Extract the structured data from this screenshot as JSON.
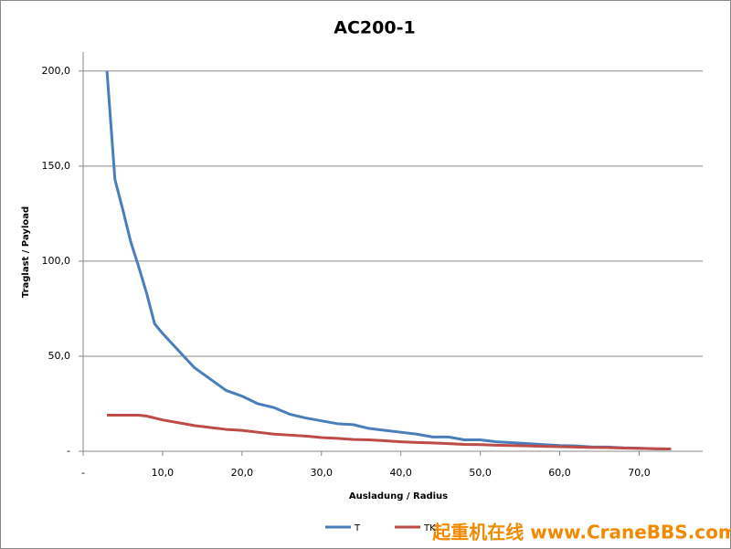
{
  "chart_data": {
    "type": "line",
    "title": "AC200-1",
    "x_label": "Ausladung / Radius",
    "y_label": "Traglast / Payload",
    "x": [
      3,
      4,
      5,
      6,
      7,
      8,
      9,
      10,
      12,
      14,
      16,
      18,
      20,
      22,
      24,
      26,
      28,
      30,
      32,
      34,
      36,
      38,
      40,
      42,
      44,
      46,
      48,
      50,
      52,
      54,
      56,
      58,
      60,
      62,
      64,
      66,
      68,
      70,
      72,
      74
    ],
    "series": [
      {
        "name": "T",
        "color": "#4a7ebb",
        "values": [
          200,
          143,
          127,
          110,
          97,
          83,
          67,
          62,
          53,
          44,
          38,
          32,
          29,
          25,
          23,
          19.5,
          17.5,
          16,
          14.5,
          14,
          12,
          11,
          10,
          9,
          7.5,
          7.5,
          6,
          6,
          5,
          4.5,
          4,
          3.5,
          3,
          2.8,
          2.3,
          2.2,
          1.8,
          1.6,
          1.3,
          1.2
        ]
      },
      {
        "name": "TK",
        "color": "#be4b48",
        "values": [
          19,
          19,
          19,
          19,
          19,
          18.5,
          17.5,
          16.5,
          15,
          13.5,
          12.5,
          11.5,
          11,
          10,
          9,
          8.5,
          8,
          7.2,
          6.8,
          6.2,
          6,
          5.5,
          5,
          4.6,
          4.4,
          4,
          3.6,
          3.5,
          3.2,
          3,
          2.8,
          2.6,
          2.4,
          2.2,
          2,
          1.9,
          1.7,
          1.5,
          1.3,
          1.2
        ]
      }
    ],
    "xlim": [
      0,
      78
    ],
    "ylim": [
      0,
      210
    ],
    "xticks": [
      {
        "value": 0,
        "label": "-"
      },
      {
        "value": 10,
        "label": "10,0"
      },
      {
        "value": 20,
        "label": "20,0"
      },
      {
        "value": 30,
        "label": "30,0"
      },
      {
        "value": 40,
        "label": "40,0"
      },
      {
        "value": 50,
        "label": "50,0"
      },
      {
        "value": 60,
        "label": "60,0"
      },
      {
        "value": 70,
        "label": "70,0"
      }
    ],
    "yticks": [
      {
        "value": 0,
        "label": "-"
      },
      {
        "value": 50,
        "label": "50,0"
      },
      {
        "value": 100,
        "label": "100,0"
      },
      {
        "value": 150,
        "label": "150,0"
      },
      {
        "value": 200,
        "label": "200,0"
      }
    ],
    "grid": true,
    "legend": "bottom",
    "watermark": "起重机在线 www.CraneBBS.com"
  }
}
